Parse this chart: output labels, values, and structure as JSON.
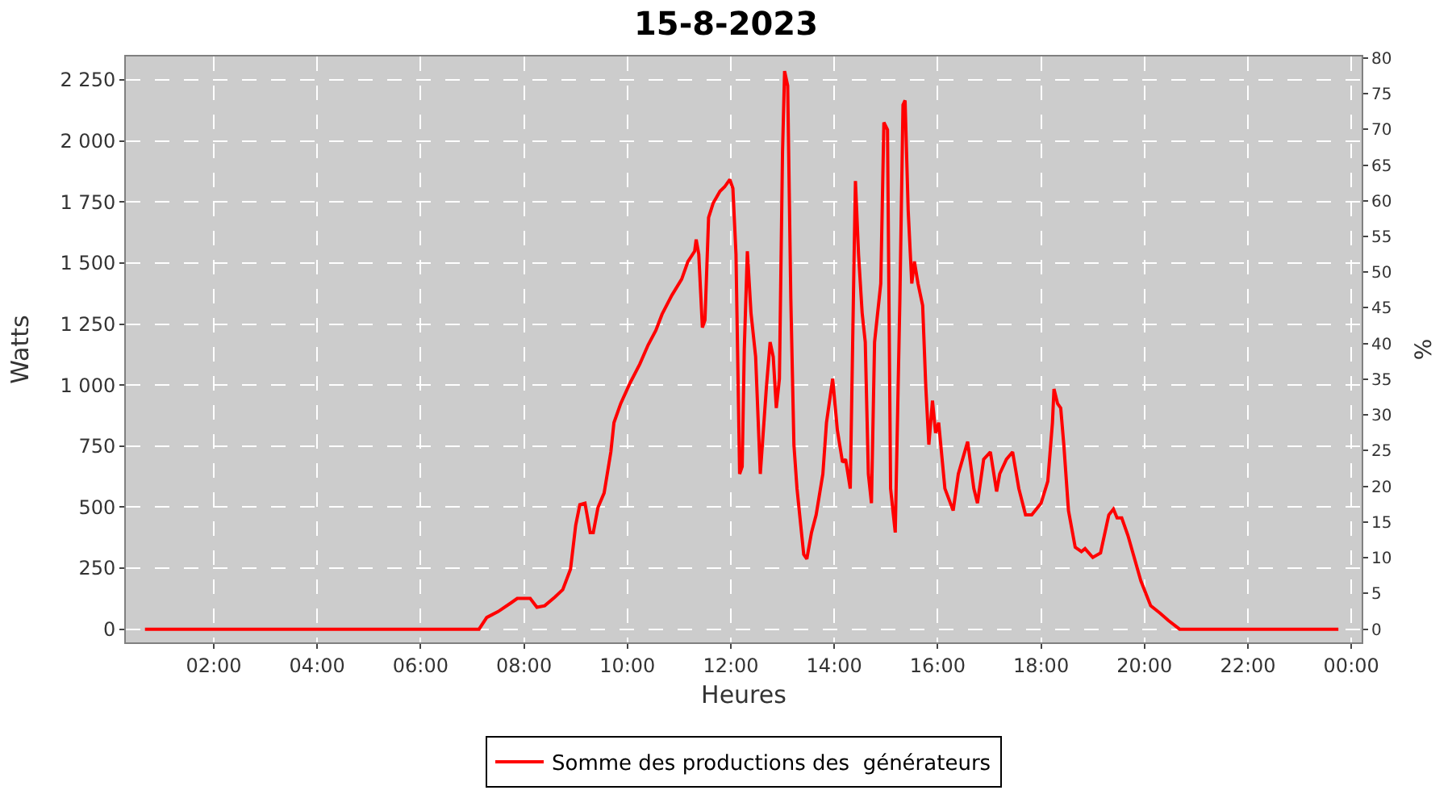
{
  "chart_data": {
    "type": "line",
    "title": "15-8-2023",
    "xlabel": "Heures",
    "ylabel": "Watts",
    "y2label": "%",
    "x": [
      0.67,
      7.13,
      7.28,
      7.5,
      7.75,
      7.87,
      8.12,
      8.25,
      8.4,
      8.6,
      8.75,
      8.9,
      9.0,
      9.08,
      9.18,
      9.28,
      9.34,
      9.43,
      9.55,
      9.68,
      9.74,
      9.87,
      10.05,
      10.24,
      10.4,
      10.55,
      10.67,
      10.86,
      11.05,
      11.17,
      11.3,
      11.33,
      11.38,
      11.45,
      11.5,
      11.57,
      11.66,
      11.79,
      11.88,
      11.98,
      12.04,
      12.1,
      12.17,
      12.22,
      12.26,
      12.32,
      12.39,
      12.48,
      12.57,
      12.69,
      12.76,
      12.82,
      12.88,
      12.94,
      13.0,
      13.04,
      13.1,
      13.16,
      13.22,
      13.28,
      13.41,
      13.47,
      13.56,
      13.65,
      13.78,
      13.85,
      13.97,
      14.06,
      14.16,
      14.22,
      14.31,
      14.38,
      14.41,
      14.47,
      14.54,
      14.6,
      14.66,
      14.72,
      14.78,
      14.9,
      14.96,
      15.03,
      15.09,
      15.18,
      15.27,
      15.33,
      15.37,
      15.43,
      15.5,
      15.55,
      15.62,
      15.71,
      15.77,
      15.83,
      15.9,
      15.96,
      16.02,
      16.14,
      16.3,
      16.4,
      16.58,
      16.7,
      16.77,
      16.89,
      17.02,
      17.14,
      17.2,
      17.33,
      17.45,
      17.57,
      17.7,
      17.82,
      18.0,
      18.13,
      18.22,
      18.25,
      18.32,
      18.38,
      18.44,
      18.53,
      18.66,
      18.78,
      18.85,
      19.0,
      19.15,
      19.31,
      19.4,
      19.47,
      19.56,
      19.68,
      19.93,
      20.12,
      20.3,
      20.46,
      20.68,
      23.75
    ],
    "series": [
      {
        "name": "Somme des productions des  générateurs",
        "color": "#ff0000",
        "values": [
          0,
          0,
          48,
          72,
          108,
          126,
          126,
          90,
          96,
          132,
          162,
          246,
          426,
          510,
          516,
          396,
          396,
          498,
          558,
          726,
          846,
          924,
          1008,
          1086,
          1164,
          1224,
          1290,
          1368,
          1434,
          1506,
          1548,
          1596,
          1536,
          1236,
          1266,
          1686,
          1746,
          1794,
          1812,
          1842,
          1806,
          1536,
          636,
          666,
          1146,
          1548,
          1296,
          1116,
          636,
          996,
          1176,
          1116,
          906,
          1026,
          1956,
          2286,
          2226,
          1356,
          756,
          576,
          306,
          288,
          396,
          468,
          636,
          846,
          1026,
          816,
          684,
          696,
          576,
          1476,
          1836,
          1536,
          1296,
          1176,
          636,
          516,
          1176,
          1416,
          2076,
          2046,
          576,
          396,
          1356,
          2148,
          2166,
          1716,
          1416,
          1506,
          1416,
          1326,
          996,
          756,
          936,
          804,
          846,
          576,
          486,
          636,
          768,
          576,
          516,
          696,
          726,
          564,
          636,
          696,
          726,
          576,
          468,
          468,
          516,
          606,
          846,
          984,
          924,
          906,
          756,
          486,
          336,
          318,
          330,
          294,
          312,
          468,
          492,
          456,
          456,
          384,
          198,
          96,
          66,
          36,
          0,
          0
        ]
      }
    ],
    "xlim": [
      0.3,
      24.2
    ],
    "xticks": [
      {
        "value": 2,
        "label": "02:00"
      },
      {
        "value": 4,
        "label": "04:00"
      },
      {
        "value": 6,
        "label": "06:00"
      },
      {
        "value": 8,
        "label": "08:00"
      },
      {
        "value": 10,
        "label": "10:00"
      },
      {
        "value": 12,
        "label": "12:00"
      },
      {
        "value": 14,
        "label": "14:00"
      },
      {
        "value": 16,
        "label": "16:00"
      },
      {
        "value": 18,
        "label": "18:00"
      },
      {
        "value": 20,
        "label": "20:00"
      },
      {
        "value": 22,
        "label": "22:00"
      },
      {
        "value": 24,
        "label": "00:00"
      }
    ],
    "ylim": [
      -54,
      2346
    ],
    "yticks": [
      {
        "value": 0,
        "label": "0"
      },
      {
        "value": 250,
        "label": "250"
      },
      {
        "value": 500,
        "label": "500"
      },
      {
        "value": 750,
        "label": "750"
      },
      {
        "value": 1000,
        "label": "1 000"
      },
      {
        "value": 1250,
        "label": "1 250"
      },
      {
        "value": 1500,
        "label": "1 500"
      },
      {
        "value": 1750,
        "label": "1 750"
      },
      {
        "value": 2000,
        "label": "2 000"
      },
      {
        "value": 2250,
        "label": "2 250"
      }
    ],
    "y2lim": [
      -1.85,
      80.2
    ],
    "y2ticks": [
      0,
      5,
      10,
      15,
      20,
      25,
      30,
      35,
      40,
      45,
      50,
      55,
      60,
      65,
      70,
      75,
      80
    ],
    "grid": true,
    "legend": "bottom",
    "marker": "none",
    "line_style": "solid"
  }
}
